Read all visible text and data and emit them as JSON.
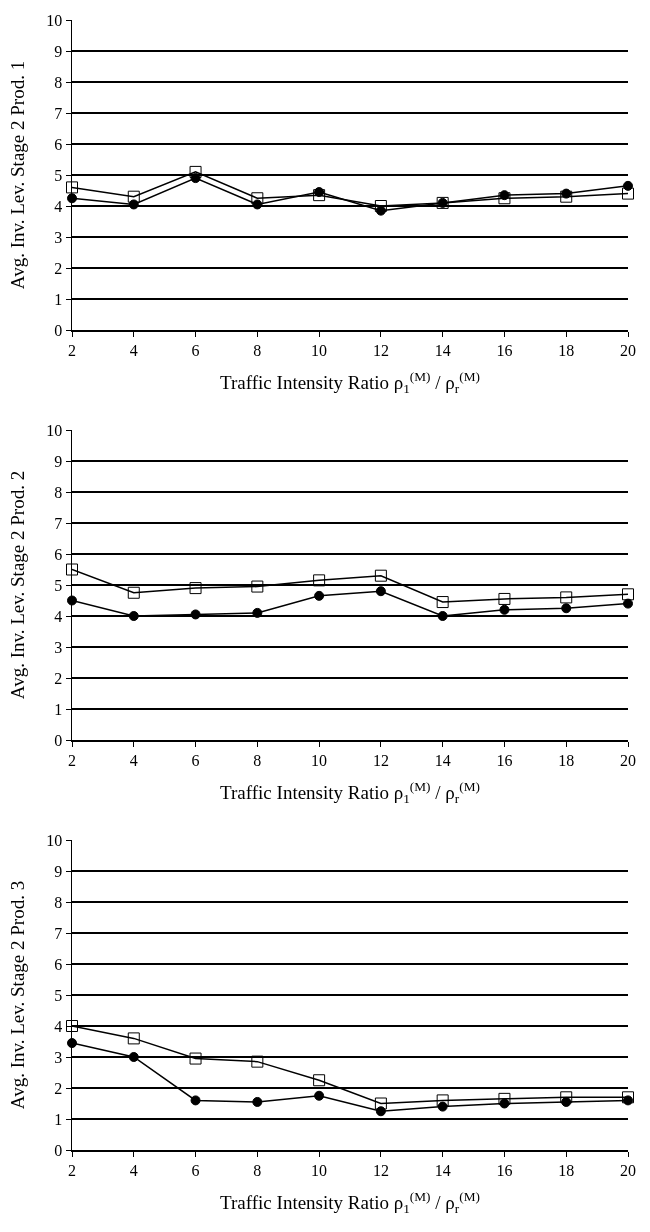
{
  "chart_data": [
    {
      "type": "line",
      "xlabel": "Traffic Intensity Ratio ρ$_{1}$$^{(M)}$ / ρ$_{r}$$^{(M)}$",
      "ylabel": "Avg. Inv. Lev. Stage 2 Prod. 1",
      "x": [
        2,
        4,
        6,
        8,
        10,
        12,
        14,
        16,
        18,
        20
      ],
      "xlim": [
        2,
        20
      ],
      "xticks": [
        2,
        4,
        6,
        8,
        10,
        12,
        14,
        16,
        18,
        20
      ],
      "ylim": [
        0,
        10
      ],
      "yticks": [
        0,
        1,
        2,
        3,
        4,
        5,
        6,
        7,
        8,
        9,
        10
      ],
      "grid": "y",
      "line_style": "solid",
      "series": [
        {
          "color": "#000000",
          "marker": "square",
          "values": [
            4.6,
            4.3,
            5.1,
            4.25,
            4.35,
            4.0,
            4.1,
            4.25,
            4.3,
            4.4
          ]
        },
        {
          "color": "#000000",
          "marker": "circle",
          "values": [
            4.25,
            4.05,
            4.9,
            4.05,
            4.45,
            3.85,
            4.1,
            4.35,
            4.4,
            4.65
          ]
        }
      ]
    },
    {
      "type": "line",
      "xlabel": "Traffic Intensity Ratio ρ$_{1}$$^{(M)}$ / ρ$_{r}$$^{(M)}$",
      "ylabel": "Avg. Inv. Lev. Stage 2 Prod. 2",
      "x": [
        2,
        4,
        6,
        8,
        10,
        12,
        14,
        16,
        18,
        20
      ],
      "xlim": [
        2,
        20
      ],
      "xticks": [
        2,
        4,
        6,
        8,
        10,
        12,
        14,
        16,
        18,
        20
      ],
      "ylim": [
        0,
        10
      ],
      "yticks": [
        0,
        1,
        2,
        3,
        4,
        5,
        6,
        7,
        8,
        9,
        10
      ],
      "grid": "y",
      "line_style": "solid",
      "series": [
        {
          "color": "#000000",
          "marker": "square",
          "values": [
            5.5,
            4.75,
            4.9,
            4.95,
            5.15,
            5.3,
            4.45,
            4.55,
            4.6,
            4.7
          ]
        },
        {
          "color": "#000000",
          "marker": "circle",
          "values": [
            4.5,
            4.0,
            4.05,
            4.1,
            4.65,
            4.8,
            4.0,
            4.2,
            4.25,
            4.4
          ]
        }
      ]
    },
    {
      "type": "line",
      "xlabel": "Traffic Intensity Ratio ρ$_{1}$$^{(M)}$ / ρ$_{r}$$^{(M)}$",
      "ylabel": "Avg. Inv. Lev. Stage 2 Prod. 3",
      "x": [
        2,
        4,
        6,
        8,
        10,
        12,
        14,
        16,
        18,
        20
      ],
      "xlim": [
        2,
        20
      ],
      "xticks": [
        2,
        4,
        6,
        8,
        10,
        12,
        14,
        16,
        18,
        20
      ],
      "ylim": [
        0,
        10
      ],
      "yticks": [
        0,
        1,
        2,
        3,
        4,
        5,
        6,
        7,
        8,
        9,
        10
      ],
      "grid": "y",
      "line_style": "solid",
      "series": [
        {
          "color": "#000000",
          "marker": "square",
          "values": [
            4.0,
            3.6,
            2.95,
            2.85,
            2.25,
            1.5,
            1.6,
            1.65,
            1.7,
            1.7
          ]
        },
        {
          "color": "#000000",
          "marker": "circle",
          "values": [
            3.45,
            3.0,
            1.6,
            1.55,
            1.75,
            1.25,
            1.4,
            1.5,
            1.55,
            1.6
          ]
        }
      ]
    }
  ]
}
